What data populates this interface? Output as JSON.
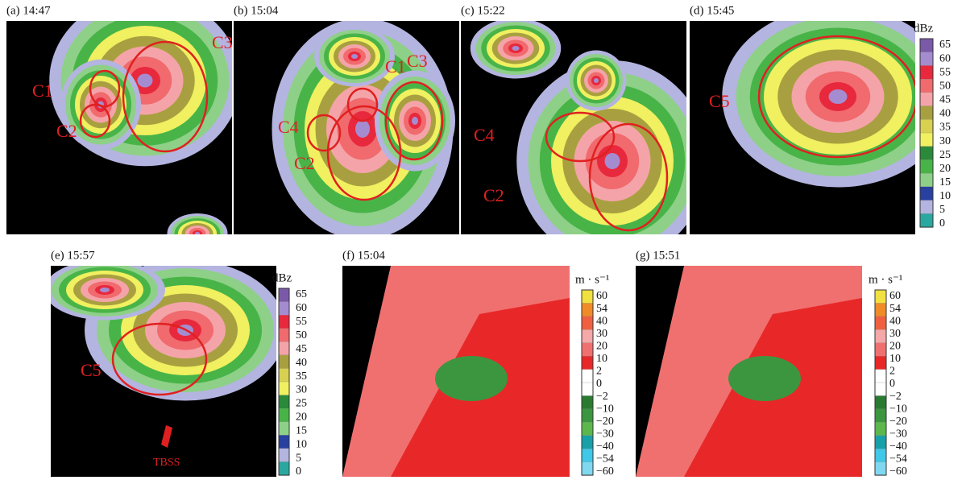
{
  "panels": [
    {
      "label": "(a) 14:47",
      "annotations": [
        "C1",
        "C2",
        "C3"
      ]
    },
    {
      "label": "(b) 15:04",
      "annotations": [
        "C1",
        "C3",
        "C4",
        "C2"
      ]
    },
    {
      "label": "(c) 15:22",
      "annotations": [
        "C4",
        "C2"
      ]
    },
    {
      "label": "(d) 15:45",
      "annotations": [
        "C5"
      ]
    },
    {
      "label": "(e) 15:57",
      "annotations": [
        "C5",
        "TBSS"
      ]
    },
    {
      "label": "(f) 15:04",
      "annotations": []
    },
    {
      "label": "(g) 15:51",
      "annotations": []
    }
  ],
  "dbz_colorbar": {
    "unit": "dBz",
    "ticks": [
      "65",
      "60",
      "55",
      "50",
      "45",
      "40",
      "35",
      "30",
      "25",
      "20",
      "15",
      "10",
      "5",
      "0"
    ],
    "colors": [
      "#7a5aa8",
      "#a58cd0",
      "#e8283c",
      "#f06a6e",
      "#f4a4a8",
      "#a8a040",
      "#d8d050",
      "#f0f060",
      "#2a8a3a",
      "#48b448",
      "#8ed088",
      "#2840a0",
      "#b4b4e0",
      "#2aa8a0"
    ]
  },
  "velocity_colorbar": {
    "unit": "m · s⁻¹",
    "ticks": [
      "60",
      "54",
      "40",
      "30",
      "20",
      "10",
      "2",
      "0",
      "−2",
      "−10",
      "−20",
      "−30",
      "−40",
      "−54",
      "−60"
    ],
    "colors": [
      "#f0e040",
      "#f08c28",
      "#f06040",
      "#f4a8a8",
      "#f07070",
      "#e82828",
      "#ffffff",
      "#ffffff",
      "#2a7a32",
      "#3c9640",
      "#5cb84c",
      "#18a0a8",
      "#40c8e8",
      "#80d8f0"
    ]
  }
}
